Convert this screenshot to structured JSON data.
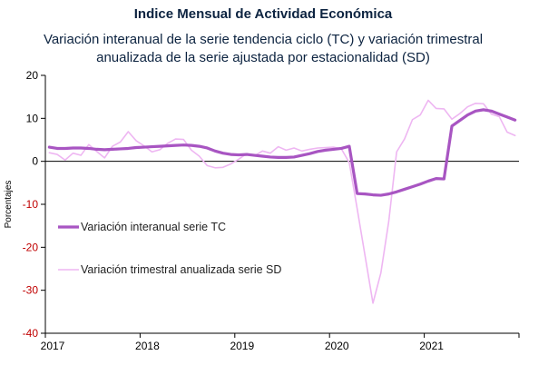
{
  "chart_data": {
    "type": "line",
    "title": "Indice Mensual de  Actividad Económica",
    "subtitle_lines": [
      "Variación interanual de la serie tendencia ciclo (TC) y variación trimestral",
      "anualizada de la serie ajustada por estacionalidad (SD)"
    ],
    "ylabel": "Porcentajes",
    "xlabel": "",
    "ylim": [
      -40,
      20
    ],
    "yticks": [
      20,
      10,
      0,
      -10,
      -20,
      -30,
      -40
    ],
    "xticks": [
      "2017",
      "2018",
      "2019",
      "2020",
      "2021"
    ],
    "x_start": "2017-01",
    "x_end": "2021-12",
    "grid": false,
    "legend_position": "left, mid-plot",
    "colors": {
      "tc": "#a855c2",
      "sd": "#eeb6f2",
      "negative_tick": "#c00000",
      "positive_tick": "#000000",
      "zero_line": "#000000"
    },
    "series": [
      {
        "name": "Variación interanual serie TC",
        "key": "tc",
        "values": [
          3.3,
          3.0,
          3.0,
          3.1,
          3.1,
          3.0,
          2.8,
          2.7,
          2.8,
          2.9,
          3.0,
          3.2,
          3.3,
          3.4,
          3.5,
          3.6,
          3.7,
          3.8,
          3.7,
          3.5,
          3.1,
          2.4,
          1.9,
          1.6,
          1.5,
          1.6,
          1.4,
          1.2,
          1.0,
          0.9,
          0.9,
          1.0,
          1.4,
          1.8,
          2.3,
          2.6,
          2.8,
          3.0,
          3.5,
          -7.5,
          -7.6,
          -7.8,
          -7.9,
          -7.6,
          -7.1,
          -6.5,
          -5.9,
          -5.3,
          -4.6,
          -4.0,
          -4.1,
          8.2,
          9.5,
          10.8,
          11.7,
          12.0,
          11.7,
          11.0,
          10.3,
          9.6
        ]
      },
      {
        "name": "Variación trimestral anualizada serie SD",
        "key": "sd",
        "values": [
          2.0,
          1.6,
          0.3,
          1.9,
          1.4,
          3.9,
          2.3,
          0.8,
          3.5,
          4.5,
          6.9,
          4.8,
          3.6,
          2.2,
          2.7,
          4.2,
          5.2,
          5.1,
          2.6,
          1.2,
          -1.0,
          -1.5,
          -1.4,
          -0.6,
          0.5,
          1.8,
          1.3,
          2.4,
          1.9,
          3.4,
          2.6,
          3.1,
          2.4,
          2.8,
          3.1,
          3.2,
          3.3,
          2.9,
          -0.3,
          -11.0,
          -22.0,
          -33.0,
          -26.0,
          -14.0,
          2.2,
          5.2,
          9.7,
          10.8,
          14.2,
          12.3,
          12.2,
          9.8,
          11.1,
          12.7,
          13.5,
          13.4,
          11.0,
          10.4,
          6.8,
          6.0
        ]
      }
    ]
  }
}
